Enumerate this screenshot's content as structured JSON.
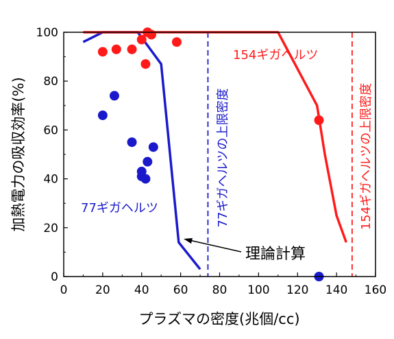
{
  "chart_data": {
    "type": "scatter",
    "xlabel": "プラズマの密度(兆個/cc)",
    "ylabel": "加熱電力の吸収効率(%)",
    "xlim": [
      0,
      160
    ],
    "ylim": [
      0,
      100
    ],
    "x_ticks": [
      0,
      20,
      40,
      60,
      80,
      100,
      120,
      140,
      160
    ],
    "y_ticks": [
      0,
      20,
      40,
      60,
      80,
      100
    ],
    "colors": {
      "red": "#ff1a1a",
      "blue": "#1a1acc",
      "black": "#000000"
    },
    "series": [
      {
        "name": "77ギガヘルツ",
        "color": "#1a1acc",
        "points": [
          {
            "x": 20,
            "y": 66
          },
          {
            "x": 26,
            "y": 74
          },
          {
            "x": 35,
            "y": 55
          },
          {
            "x": 40,
            "y": 43
          },
          {
            "x": 40,
            "y": 41
          },
          {
            "x": 42,
            "y": 40
          },
          {
            "x": 43,
            "y": 47
          },
          {
            "x": 46,
            "y": 53
          },
          {
            "x": 131,
            "y": 0
          }
        ],
        "theory_curve": [
          {
            "x": 10,
            "y": 96
          },
          {
            "x": 20,
            "y": 100
          },
          {
            "x": 38,
            "y": 100
          },
          {
            "x": 50,
            "y": 87
          },
          {
            "x": 59,
            "y": 14
          },
          {
            "x": 70,
            "y": 3
          }
        ],
        "limit_label": "77ギガヘルツの上限密度",
        "limit_x": 74
      },
      {
        "name": "154ギガヘルツ",
        "color": "#ff1a1a",
        "points": [
          {
            "x": 20,
            "y": 92
          },
          {
            "x": 27,
            "y": 93
          },
          {
            "x": 35,
            "y": 93
          },
          {
            "x": 40,
            "y": 97
          },
          {
            "x": 42,
            "y": 87
          },
          {
            "x": 43,
            "y": 100
          },
          {
            "x": 45,
            "y": 99
          },
          {
            "x": 58,
            "y": 96
          },
          {
            "x": 131,
            "y": 64
          }
        ],
        "theory_curve": [
          {
            "x": 10,
            "y": 100
          },
          {
            "x": 110,
            "y": 100
          },
          {
            "x": 130,
            "y": 70
          },
          {
            "x": 134,
            "y": 50
          },
          {
            "x": 140,
            "y": 25
          },
          {
            "x": 145,
            "y": 14
          }
        ],
        "limit_label": "154ギガヘルツの上限密度",
        "limit_x": 148
      }
    ],
    "annotation": {
      "text": "理論計算",
      "arrow_to": {
        "x": 59,
        "y": 15
      }
    }
  }
}
